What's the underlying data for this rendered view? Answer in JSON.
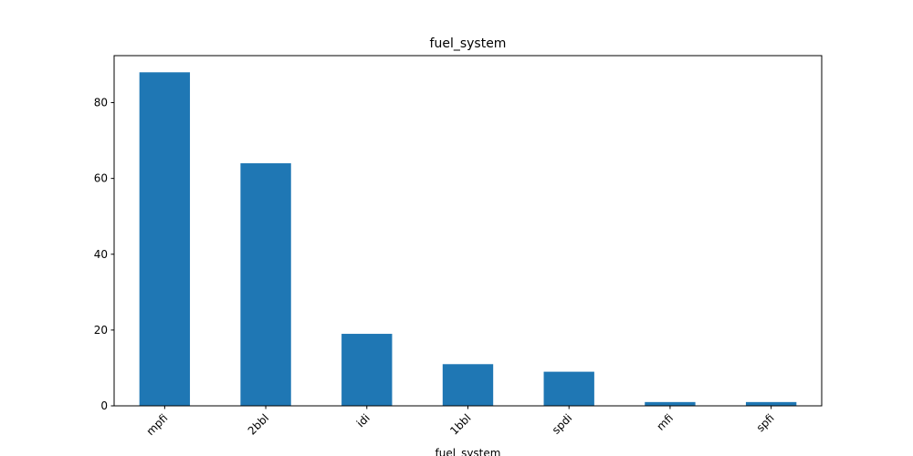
{
  "chart_data": {
    "type": "bar",
    "title": "fuel_system",
    "xlabel": "fuel_system",
    "ylabel": "",
    "categories": [
      "mpfi",
      "2bbl",
      "idi",
      "1bbl",
      "spdi",
      "mfi",
      "spfi"
    ],
    "values": [
      88,
      64,
      19,
      11,
      9,
      1,
      1
    ],
    "ylim": [
      0,
      92.4
    ],
    "yticks": [
      0,
      20,
      40,
      60,
      80
    ],
    "bar_color": "#1f77b4",
    "grid": false,
    "legend": "none"
  }
}
